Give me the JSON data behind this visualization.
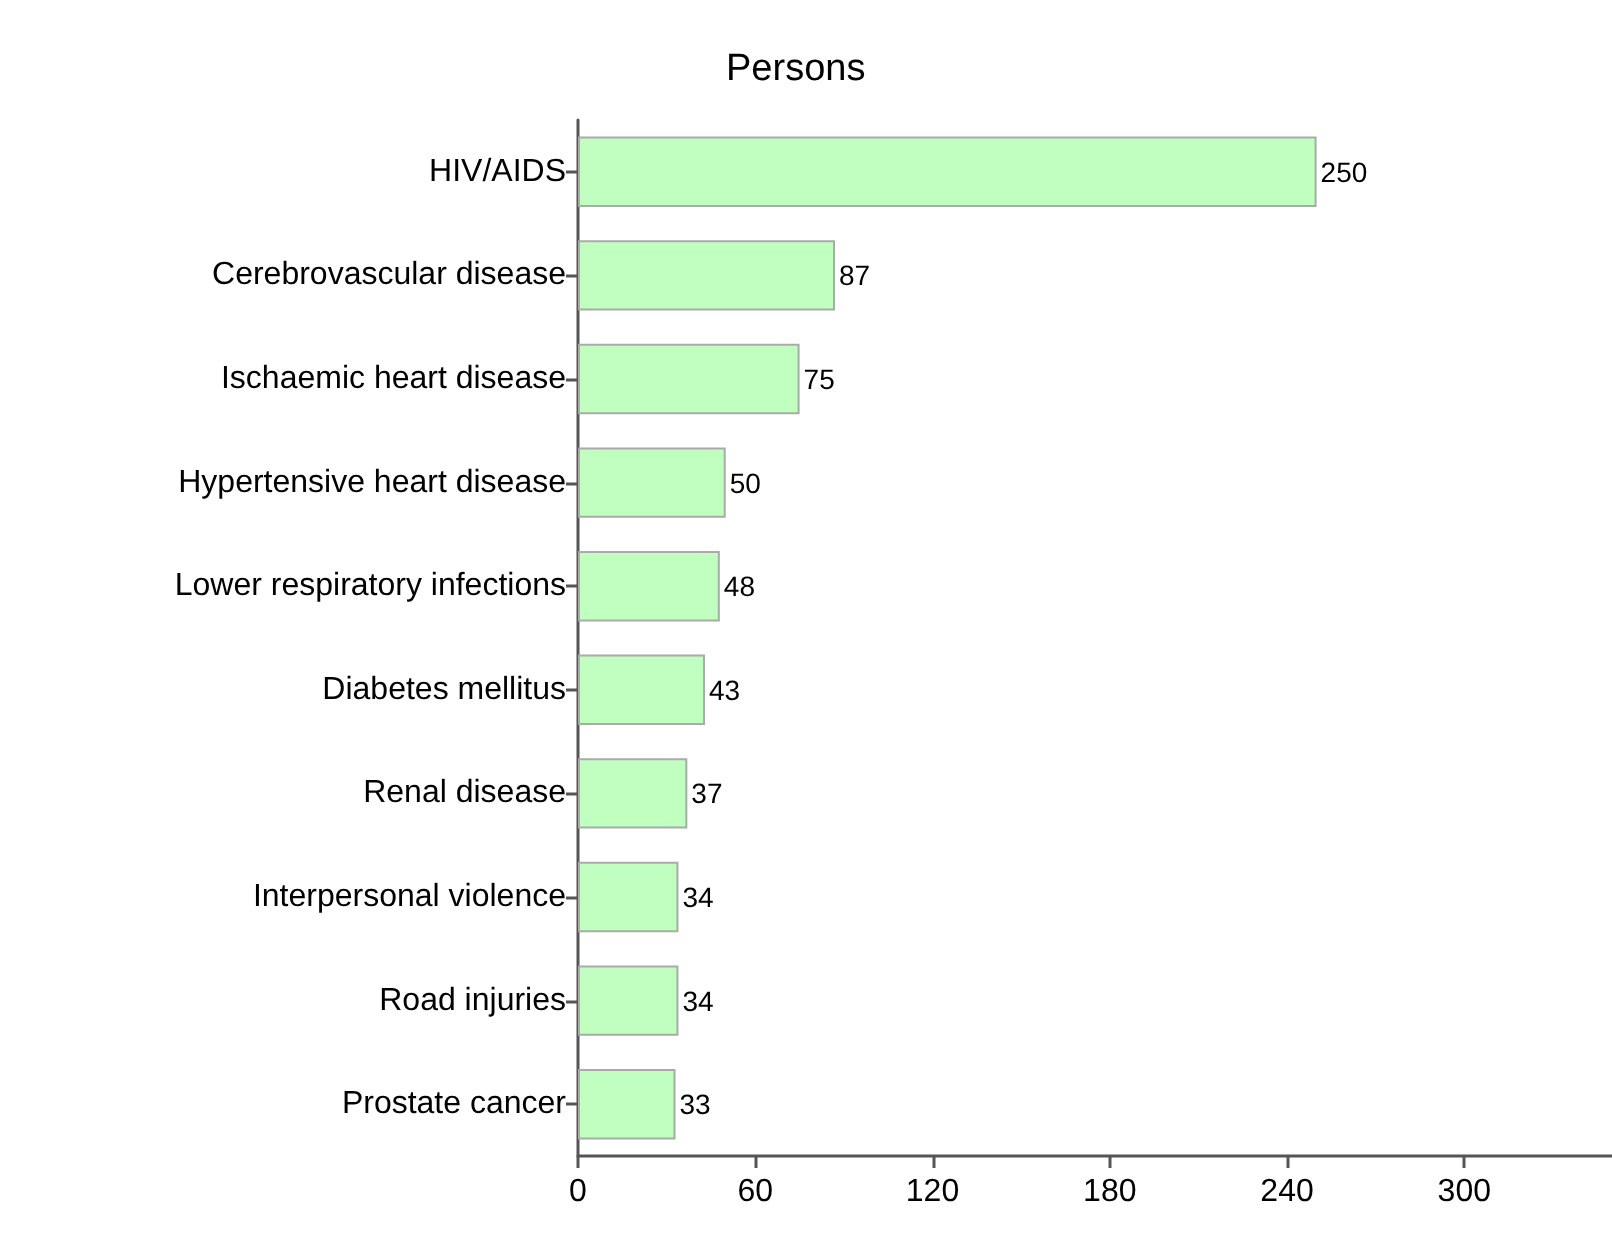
{
  "chart_data": {
    "type": "bar",
    "orientation": "horizontal",
    "title": "Persons",
    "categories": [
      "HIV/AIDS",
      "Cerebrovascular disease",
      "Ischaemic heart disease",
      "Hypertensive heart disease",
      "Lower respiratory infections",
      "Diabetes mellitus",
      "Renal disease",
      "Interpersonal violence",
      "Road injuries",
      "Prostate cancer"
    ],
    "values": [
      250,
      87,
      75,
      50,
      48,
      43,
      37,
      34,
      34,
      33
    ],
    "color": "#c0ffc0",
    "xlim": [
      0,
      350
    ],
    "xticks": [
      0,
      60,
      120,
      180,
      240,
      300
    ],
    "data_labels": true
  }
}
